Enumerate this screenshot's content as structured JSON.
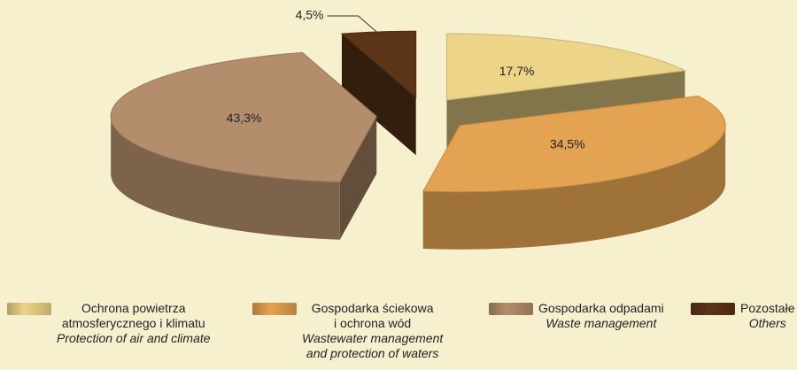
{
  "chart_data": {
    "type": "pie",
    "categories": [
      [
        "Ochrona powietrza",
        "atmosferycznego i klimatu"
      ],
      [
        "Gospodarka ściekowa",
        "i ochrona wód"
      ],
      [
        "Gospodarka odpadami"
      ],
      [
        "Pozostałe"
      ]
    ],
    "categories_en": [
      [
        "Protection of air and climate"
      ],
      [
        "Wastewater management",
        "and protection of waters"
      ],
      [
        "Waste management"
      ],
      [
        "Others"
      ]
    ],
    "values": [
      17.7,
      34.5,
      43.3,
      4.5
    ],
    "value_labels": [
      "17,7%",
      "34,5%",
      "43,3%",
      "4,5%"
    ],
    "colors": [
      "#ecd488",
      "#e3a352",
      "#b48e6c",
      "#5c3418"
    ]
  }
}
